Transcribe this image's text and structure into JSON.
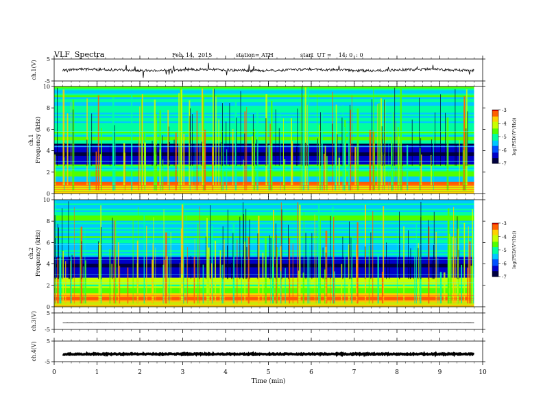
{
  "header": {
    "title": "VLF  Spectra",
    "date": "Feb. 14,  2015",
    "station": "station= ATH",
    "start": "start  UT =    14: 0  : 0"
  },
  "colors": {
    "trace": "#000000",
    "axis": "#000000",
    "colormap": [
      "#000040",
      "#0000c8",
      "#0050ff",
      "#00c8ff",
      "#00ffa0",
      "#50ff00",
      "#c8ff00",
      "#ffd000",
      "#ff6000",
      "#e00000",
      "#ffffff"
    ]
  },
  "chart_data": [
    {
      "id": "ch1",
      "type": "line",
      "ylabel": "ch.1(V)",
      "ylim": [
        -5,
        5
      ],
      "y_ticks": [
        "5",
        "-5"
      ],
      "xlim": [
        0,
        10
      ]
    },
    {
      "id": "ch1-spectrogram",
      "type": "heatmap",
      "ylabel": "Frequency  (kHz)",
      "chlabel": "ch.1",
      "ylim": [
        0,
        10
      ],
      "y_ticks": [
        "0",
        "2",
        "4",
        "6",
        "8",
        "10"
      ],
      "xlim": [
        0,
        10
      ],
      "data_end_min": 9.8,
      "colorbar": {
        "label": "log(PSD/(V²/Hz))",
        "range": [
          -7,
          -3
        ],
        "ticks": [
          "-3",
          "-4",
          "-5",
          "-6",
          "-7"
        ]
      }
    },
    {
      "id": "ch2-spectrogram",
      "type": "heatmap",
      "ylabel": "Frequency  (kHz)",
      "chlabel": "ch.2",
      "ylim": [
        0,
        10
      ],
      "y_ticks": [
        "0",
        "2",
        "4",
        "6",
        "8",
        "10"
      ],
      "xlim": [
        0,
        10
      ],
      "data_end_min": 9.8,
      "colorbar": {
        "label": "log(PSD/(V²/Hz))",
        "range": [
          -7,
          -3
        ],
        "ticks": [
          "-3",
          "-4",
          "-5",
          "-6",
          "-7"
        ]
      }
    },
    {
      "id": "ch3",
      "type": "line",
      "ylabel": "ch.3(V)",
      "ylim": [
        -5,
        5
      ],
      "y_ticks": [
        "5",
        "-5"
      ],
      "xlim": [
        0,
        10
      ],
      "level": -1
    },
    {
      "id": "ch4",
      "type": "line",
      "ylabel": "ch.4(V)",
      "ylim": [
        -5,
        5
      ],
      "y_ticks": [
        "5",
        "-5"
      ],
      "xlim": [
        0,
        10
      ],
      "level": -1.3
    }
  ],
  "x_axis": {
    "label": "Time  (min)",
    "ticks": [
      "0",
      "1",
      "2",
      "3",
      "4",
      "5",
      "6",
      "7",
      "8",
      "9",
      "10"
    ]
  }
}
